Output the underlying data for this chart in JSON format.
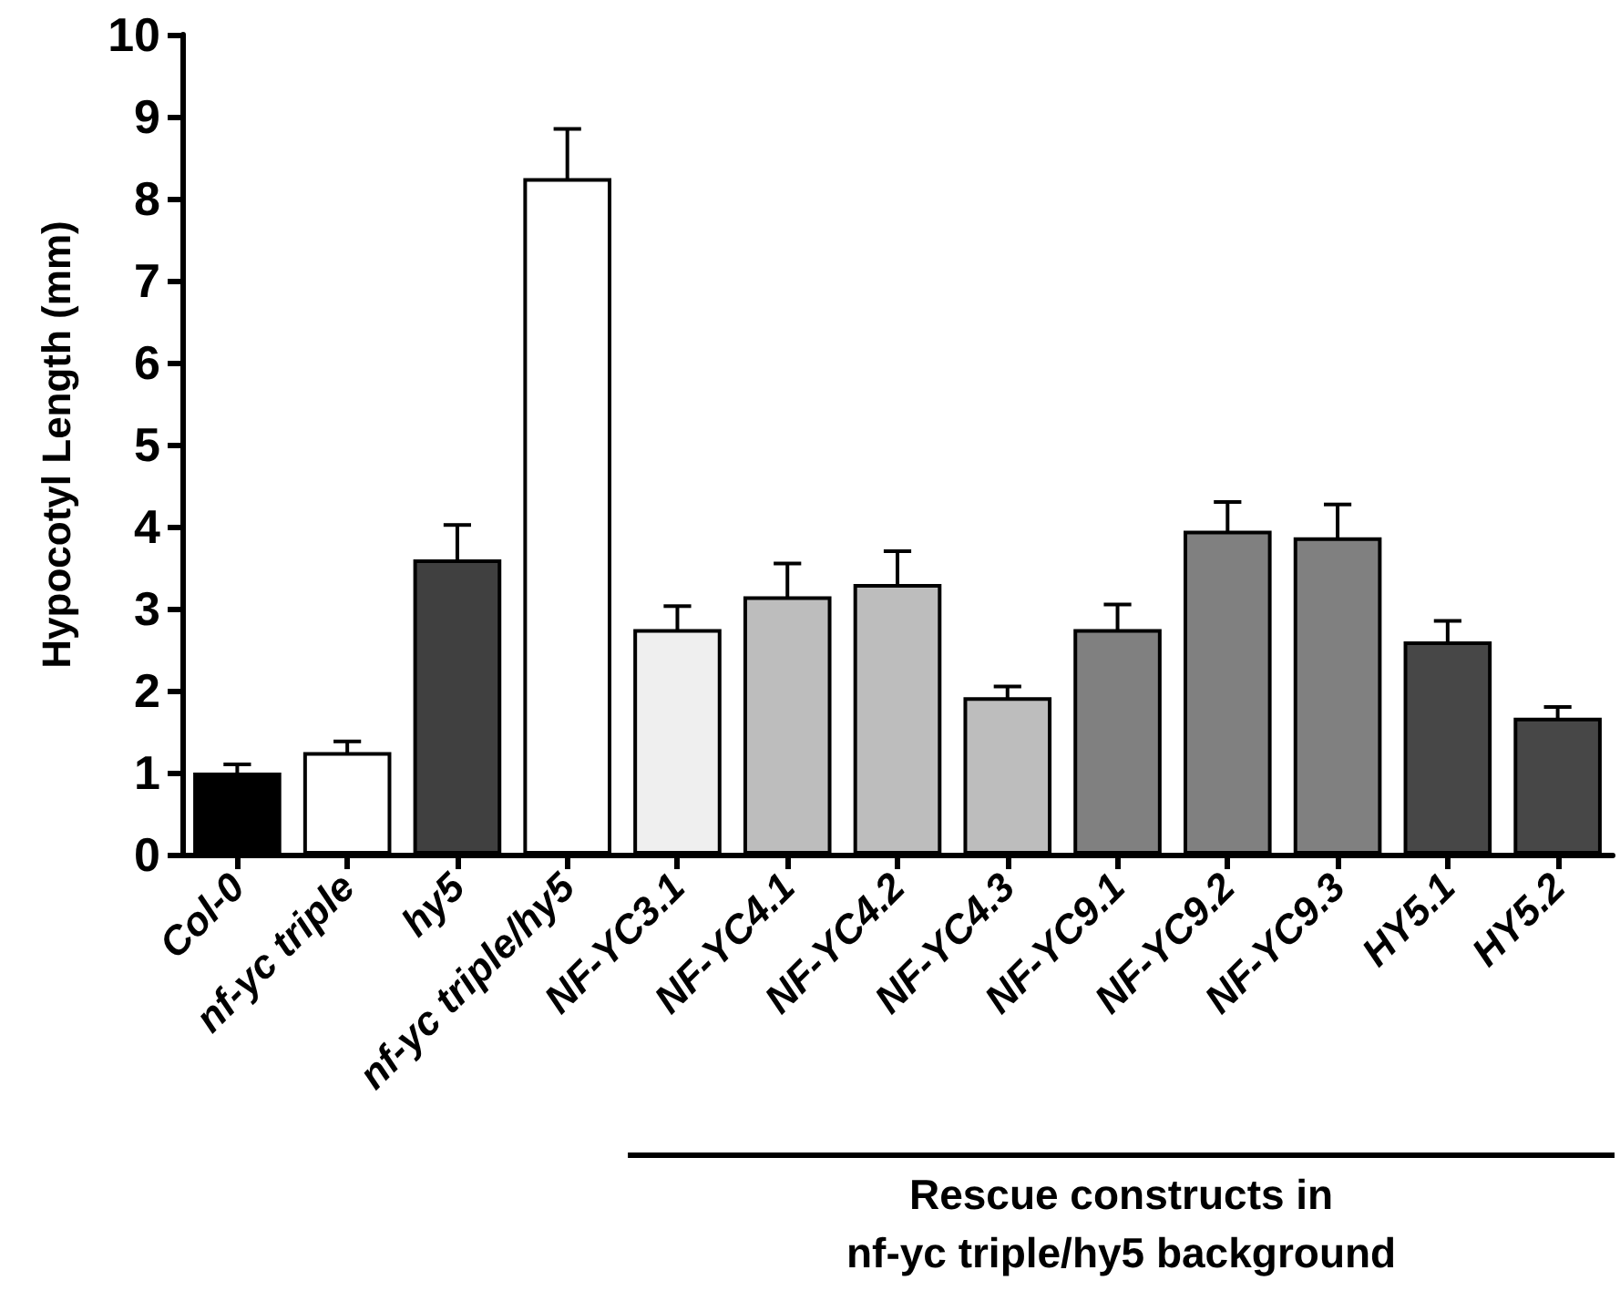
{
  "chart_data": {
    "type": "bar",
    "ylabel": "Hypocotyl Length (mm)",
    "categories": [
      "Col-0",
      "nf-yc triple",
      "hy5",
      "nf-yc triple/hy5",
      "NF-YC3.1",
      "NF-YC4.1",
      "NF-YC4.2",
      "NF-YC4.3",
      "NF-YC9.1",
      "NF-YC9.2",
      "NF-YC9.3",
      "HY5.1",
      "HY5.2"
    ],
    "values": [
      1.0,
      1.25,
      3.6,
      8.25,
      2.75,
      3.15,
      3.3,
      1.92,
      2.75,
      3.95,
      3.87,
      2.6,
      1.67
    ],
    "errors": [
      0.1,
      0.13,
      0.42,
      0.6,
      0.28,
      0.4,
      0.4,
      0.13,
      0.3,
      0.35,
      0.4,
      0.25,
      0.13
    ],
    "colors": [
      "#000000",
      "#ffffff",
      "#404040",
      "#ffffff",
      "#efefef",
      "#bdbdbd",
      "#bdbdbd",
      "#bdbdbd",
      "#808080",
      "#808080",
      "#808080",
      "#474747",
      "#474747"
    ],
    "ylim": [
      0,
      10
    ],
    "yticks": [
      0,
      1,
      2,
      3,
      4,
      5,
      6,
      7,
      8,
      9,
      10
    ],
    "annotations": [
      "Rescue constructs in",
      "nf-yc triple/hy5 background"
    ]
  }
}
